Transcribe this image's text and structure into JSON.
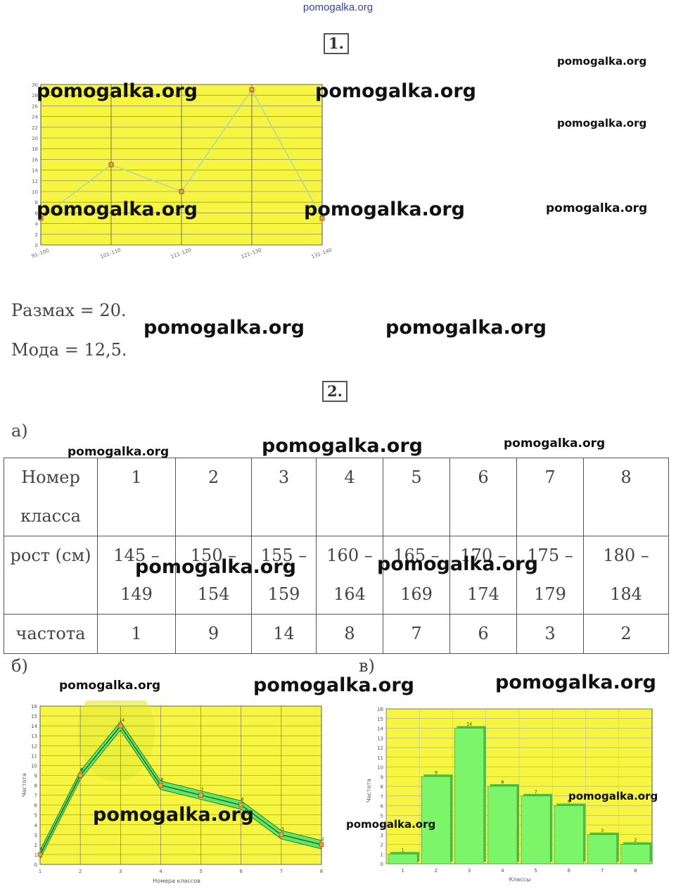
{
  "header": {
    "site": "pomogalka.org"
  },
  "watermark": "pomogalka.org",
  "task1": {
    "number": "1.",
    "razmah": "Размах = 20.",
    "moda": "Мода = 12,5.",
    "chart_data": {
      "type": "line",
      "categories": [
        "91–100",
        "101–110",
        "111–120",
        "121–130",
        "131–140"
      ],
      "values": [
        5,
        15,
        10,
        29,
        5
      ],
      "ylim": [
        0,
        30
      ],
      "y_ticks": [
        0,
        2,
        4,
        6,
        8,
        10,
        12,
        14,
        16,
        18,
        20,
        22,
        24,
        26,
        28,
        30
      ],
      "grid": true,
      "background": "#f5f542",
      "line_color": "#b0d8a8",
      "marker_color": "#d08a30"
    }
  },
  "task2": {
    "number": "2.",
    "part_a": "а)",
    "part_b": "б)",
    "part_v": "в)",
    "table": {
      "row_headers": [
        [
          "Номер",
          "класса"
        ],
        [
          "рост (см)"
        ],
        [
          "частота"
        ]
      ],
      "classes": [
        "1",
        "2",
        "3",
        "4",
        "5",
        "6",
        "7",
        "8"
      ],
      "heights": [
        [
          "145 –",
          "149"
        ],
        [
          "150 –",
          "154"
        ],
        [
          "155 –",
          "159"
        ],
        [
          "160 –",
          "164"
        ],
        [
          "165 –",
          "169"
        ],
        [
          "170 –",
          "174"
        ],
        [
          "175 –",
          "179"
        ],
        [
          "180 –",
          "184"
        ]
      ],
      "freqs": [
        "1",
        "9",
        "14",
        "8",
        "7",
        "6",
        "3",
        "2"
      ]
    },
    "chart_b": {
      "type": "line",
      "categories": [
        "1",
        "2",
        "3",
        "4",
        "5",
        "6",
        "7",
        "8"
      ],
      "values": [
        1,
        9,
        14,
        8,
        7,
        6,
        3,
        2
      ],
      "ylim": [
        0,
        16
      ],
      "ylabel": "Частота",
      "xlabel": "Номера классов",
      "grid": true,
      "background": "#f5f542",
      "band_color": "#5ee86a"
    },
    "chart_v": {
      "type": "bar",
      "categories": [
        "1",
        "2",
        "3",
        "4",
        "5",
        "6",
        "7",
        "8"
      ],
      "values": [
        1,
        9,
        14,
        8,
        7,
        6,
        3,
        2
      ],
      "ylim": [
        0,
        16
      ],
      "ylabel": "Частота",
      "xlabel": "Классы",
      "grid": true,
      "background": "#f5f542",
      "bar_color": "#7cf56a"
    }
  }
}
